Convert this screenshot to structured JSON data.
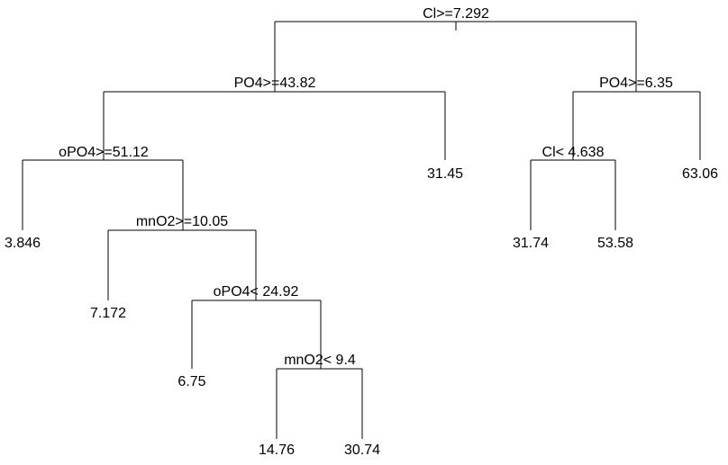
{
  "tree": {
    "splits": {
      "root": "Cl>=7.292",
      "left": "PO4>=43.82",
      "right": "PO4>=6.35",
      "left_left": "oPO4>=51.12",
      "right_left": "Cl< 4.638",
      "left_left_right": "mnO2>=10.05",
      "left_left_right_right": "oPO4< 24.92",
      "left_left_right_right_right": "mnO2< 9.4"
    },
    "leaves": {
      "left_right": "31.45",
      "right_right": "63.06",
      "left_left_left": "3.846",
      "right_left_left": "31.74",
      "right_left_right": "53.58",
      "left_left_right_left": "7.172",
      "left_left_right_right_left": "6.75",
      "left_left_right_right_right_left": "14.76",
      "left_left_right_right_right_right": "30.74"
    }
  }
}
